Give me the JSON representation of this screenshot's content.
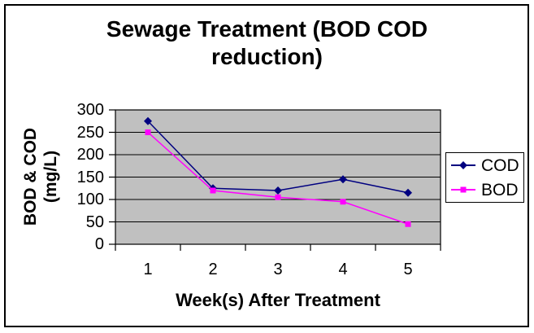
{
  "chart_data": {
    "type": "line",
    "title": "Sewage Treatment (BOD COD reduction)",
    "title_lines": [
      "Sewage Treatment (BOD COD",
      "reduction)"
    ],
    "xlabel": "Week(s) After Treatment",
    "ylabel": "BOD & COD (mg/L)",
    "ylabel_lines": [
      "BOD & COD",
      "(mg/L)"
    ],
    "categories": [
      "1",
      "2",
      "3",
      "4",
      "5"
    ],
    "series": [
      {
        "name": "COD",
        "marker": "diamond",
        "color": "#000080",
        "values": [
          275,
          125,
          120,
          145,
          115
        ]
      },
      {
        "name": "BOD",
        "marker": "square",
        "color": "#FF00FF",
        "values": [
          250,
          120,
          105,
          95,
          45
        ]
      }
    ],
    "ylim": [
      0,
      300
    ],
    "yticks": [
      0,
      50,
      100,
      150,
      200,
      250,
      300
    ],
    "grid": true,
    "gridline_color": "#000000",
    "plot_background": "#C0C0C0",
    "axis_color": "#000000",
    "legend_position": "right"
  }
}
